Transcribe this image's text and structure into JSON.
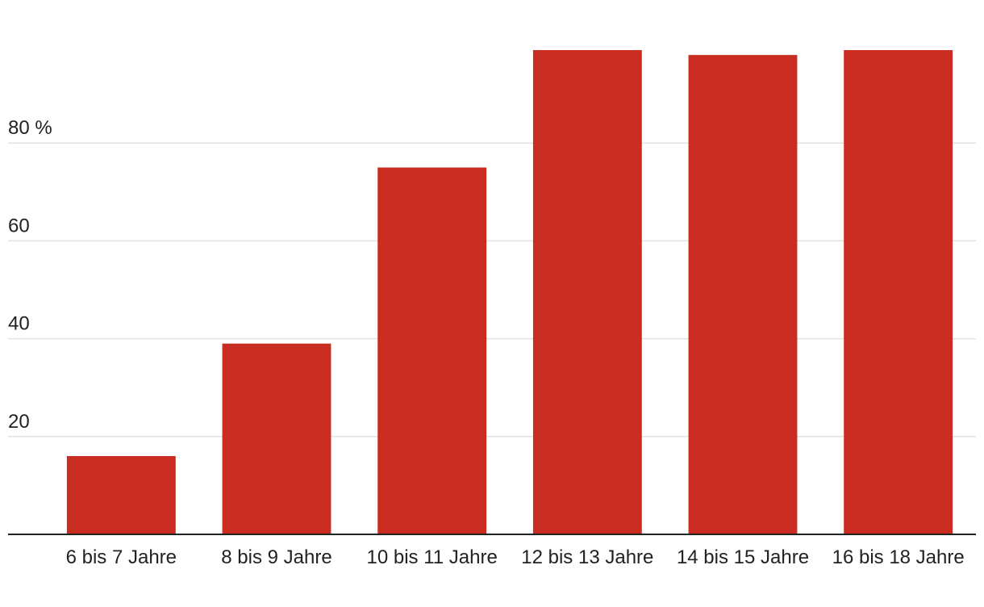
{
  "chart_data": {
    "type": "bar",
    "categories": [
      "6 bis 7 Jahre",
      "8 bis 9 Jahre",
      "10 bis 11 Jahre",
      "12 bis 13 Jahre",
      "14 bis 15 Jahre",
      "16 bis 18 Jahre"
    ],
    "values": [
      16,
      39,
      75,
      99,
      98,
      99
    ],
    "color": "#c92d22",
    "ylim": [
      0,
      100
    ],
    "yticks": [
      20,
      40,
      60,
      {
        "value": 80,
        "label": "80 %"
      }
    ],
    "grid": true
  }
}
